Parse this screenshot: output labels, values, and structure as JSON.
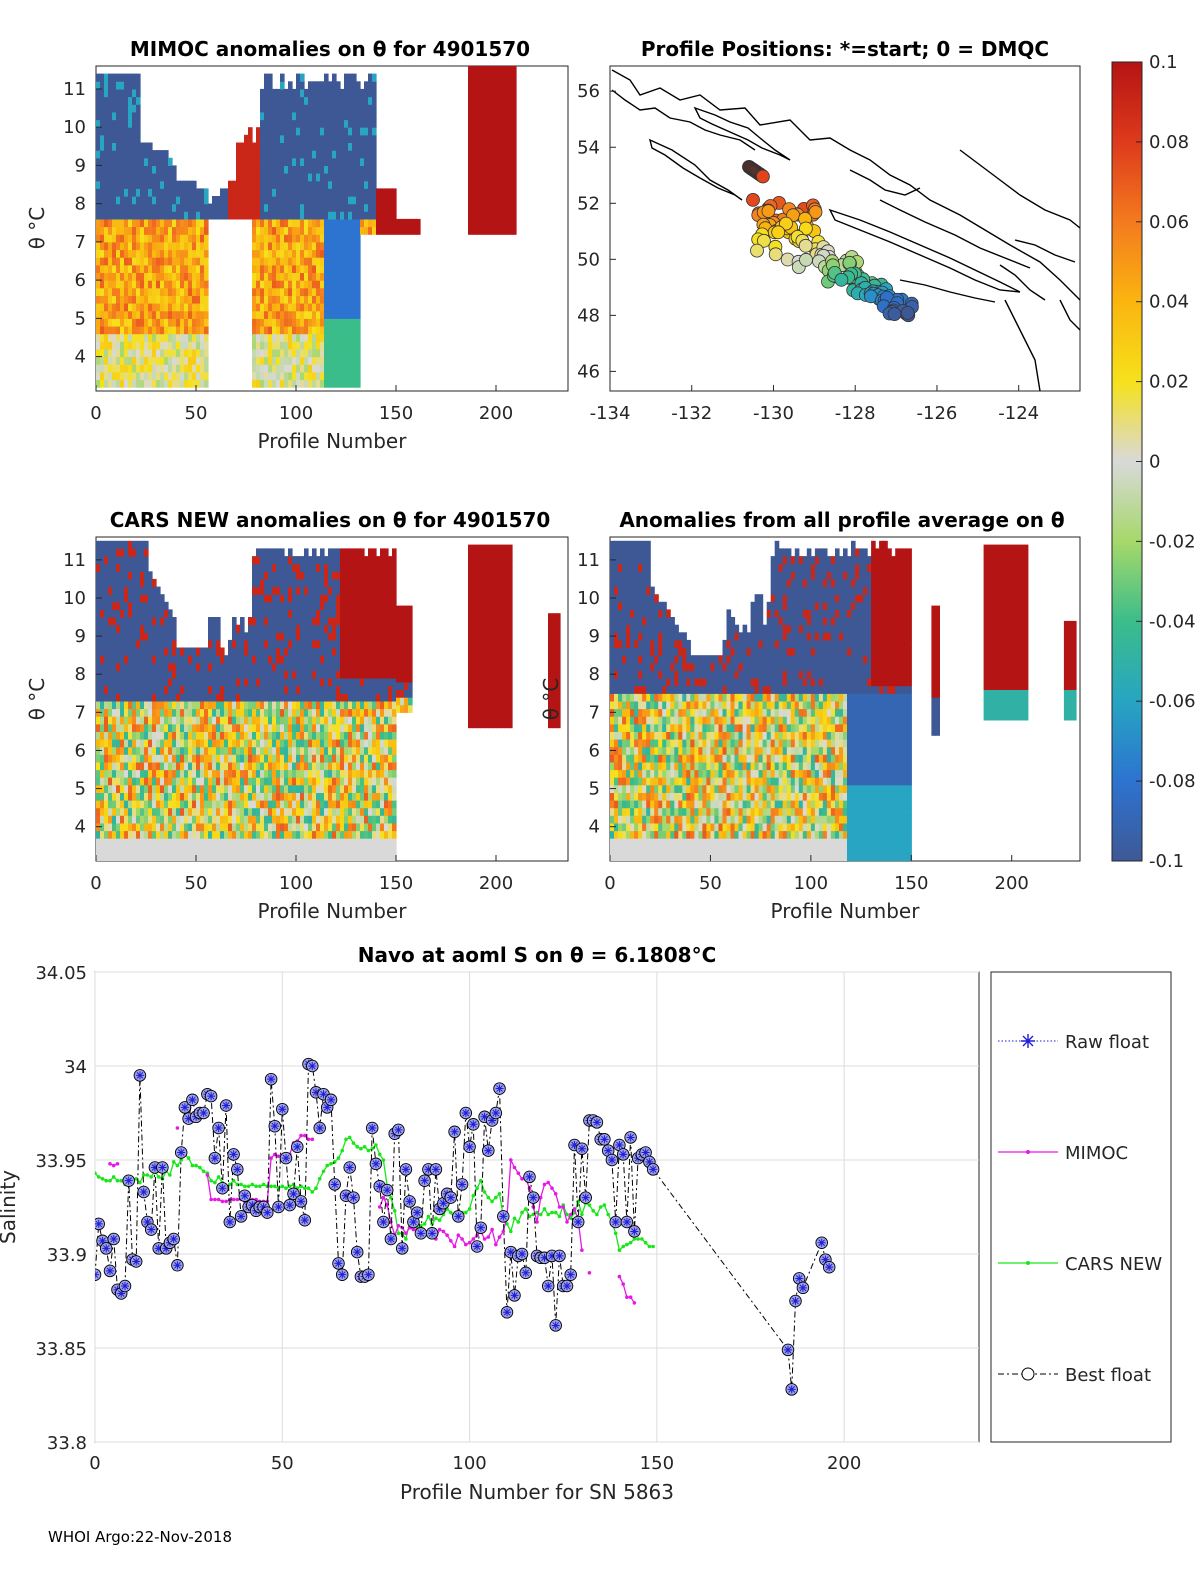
{
  "panels": {
    "mimoc": {
      "title": "MIMOC anomalies on θ  for 4901570",
      "xlabel": "Profile Number",
      "ylabel": "θ °C",
      "xticks": [
        0,
        50,
        100,
        150,
        200
      ],
      "yticks": [
        4,
        5,
        6,
        7,
        8,
        9,
        10,
        11
      ]
    },
    "positions": {
      "title": "Profile Positions: *=start; 0 = DMQC",
      "xticks": [
        -134,
        -132,
        -130,
        -128,
        -126,
        -124
      ],
      "yticks": [
        46,
        48,
        50,
        52,
        54,
        56
      ]
    },
    "cars": {
      "title": "CARS NEW anomalies on θ for 4901570",
      "xlabel": "Profile Number",
      "ylabel": "θ °C",
      "xticks": [
        0,
        50,
        100,
        150,
        200
      ],
      "yticks": [
        4,
        5,
        6,
        7,
        8,
        9,
        10,
        11
      ]
    },
    "average": {
      "title": "Anomalies from all profile average on θ",
      "xlabel": "Profile Number",
      "ylabel": "θ °C",
      "xticks": [
        0,
        50,
        100,
        150,
        200
      ],
      "yticks": [
        4,
        5,
        6,
        7,
        8,
        9,
        10,
        11
      ]
    }
  },
  "colorbar": {
    "ticks": [
      "0.1",
      "0.08",
      "0.06",
      "0.04",
      "0.02",
      "0",
      "-0.02",
      "-0.04",
      "-0.06",
      "-0.08",
      "-0.1"
    ]
  },
  "chart_data": {
    "type": "line",
    "title": "Navo at aoml S on θ = 6.1808",
    "title_unit": "°C",
    "xlabel": "Profile Number for SN 5863",
    "ylabel": "Salinity",
    "xlim": [
      0,
      236
    ],
    "ylim": [
      33.8,
      34.05
    ],
    "xticks": [
      0,
      50,
      100,
      150,
      200
    ],
    "yticks": [
      "33.8",
      "33.85",
      "33.9",
      "33.95",
      "34",
      "34.05"
    ],
    "legend": [
      {
        "name": "Raw float",
        "color": "#1f1fd6"
      },
      {
        "name": "MIMOC",
        "color": "#e619e6"
      },
      {
        "name": "CARS NEW",
        "color": "#19e619"
      },
      {
        "name": "Best float",
        "color": "#000000"
      }
    ],
    "series": [
      {
        "name": "Best float",
        "color": "#000000",
        "x": [
          0,
          1,
          2,
          3,
          4,
          5,
          6,
          7,
          8,
          9,
          10,
          11,
          12,
          13,
          14,
          15,
          16,
          17,
          18,
          19,
          20,
          21,
          22,
          23,
          24,
          25,
          26,
          27,
          28,
          29,
          30,
          31,
          32,
          33,
          34,
          35,
          36,
          37,
          38,
          39,
          40,
          41,
          42,
          43,
          44,
          45,
          46,
          47,
          48,
          49,
          50,
          51,
          52,
          53,
          54,
          55,
          56,
          57,
          58,
          59,
          60,
          61,
          62,
          63,
          64,
          65,
          66,
          67,
          68,
          69,
          70,
          71,
          72,
          73,
          74,
          75,
          76,
          77,
          78,
          79,
          80,
          81,
          82,
          83,
          84,
          85,
          86,
          87,
          88,
          89,
          90,
          91,
          92,
          93,
          94,
          95,
          96,
          97,
          98,
          99,
          100,
          101,
          102,
          103,
          104,
          105,
          106,
          107,
          108,
          109,
          110,
          111,
          112,
          113,
          114,
          115,
          116,
          117,
          118,
          119,
          120,
          121,
          122,
          123,
          124,
          125,
          126,
          127,
          128,
          129,
          130,
          131,
          132,
          133,
          134,
          135,
          136,
          137,
          138,
          139,
          140,
          141,
          142,
          143,
          144,
          145,
          146,
          147,
          148,
          149,
          185,
          186,
          187,
          188,
          189,
          194,
          195,
          196
        ],
        "y": [
          33.889,
          33.916,
          33.907,
          33.903,
          33.891,
          33.908,
          33.881,
          33.879,
          33.883,
          33.939,
          33.897,
          33.896,
          33.995,
          33.933,
          33.917,
          33.913,
          33.946,
          33.903,
          33.946,
          33.903,
          33.906,
          33.908,
          33.894,
          33.954,
          33.978,
          33.972,
          33.982,
          33.973,
          33.975,
          33.975,
          33.985,
          33.984,
          33.951,
          33.967,
          33.935,
          33.979,
          33.917,
          33.953,
          33.945,
          33.92,
          33.931,
          33.925,
          33.926,
          33.923,
          33.925,
          33.925,
          33.922,
          33.993,
          33.968,
          33.925,
          33.977,
          33.951,
          33.926,
          33.932,
          33.957,
          33.928,
          33.918,
          34.001,
          34.0,
          33.986,
          33.967,
          33.985,
          33.978,
          33.982,
          33.937,
          33.895,
          33.889,
          33.931,
          33.946,
          33.93,
          33.901,
          33.888,
          33.888,
          33.889,
          33.967,
          33.948,
          33.936,
          33.917,
          33.934,
          33.908,
          33.964,
          33.966,
          33.903,
          33.945,
          33.928,
          33.917,
          33.922,
          33.911,
          33.939,
          33.945,
          33.911,
          33.945,
          33.924,
          33.927,
          33.932,
          33.93,
          33.965,
          33.92,
          33.937,
          33.975,
          33.957,
          33.969,
          33.904,
          33.914,
          33.973,
          33.955,
          33.971,
          33.975,
          33.988,
          33.92,
          33.869,
          33.901,
          33.878,
          33.899,
          33.9,
          33.89,
          33.941,
          33.93,
          33.899,
          33.898,
          33.898,
          33.883,
          33.899,
          33.862,
          33.899,
          33.883,
          33.883,
          33.889,
          33.958,
          33.917,
          33.956,
          33.93,
          33.971,
          33.971,
          33.97,
          33.961,
          33.961,
          33.955,
          33.95,
          33.917,
          33.958,
          33.953,
          33.917,
          33.962,
          33.912,
          33.951,
          33.953,
          33.954,
          33.949,
          33.945,
          33.849,
          33.828,
          33.875,
          33.887,
          33.882,
          33.906,
          33.897,
          33.893
        ]
      },
      {
        "name": "MIMOC",
        "color": "#e619e6",
        "x": [
          4,
          5,
          6,
          22,
          30,
          31,
          32,
          33,
          34,
          35,
          36,
          37,
          38,
          39,
          40,
          41,
          42,
          43,
          44,
          45,
          46,
          47,
          48,
          49,
          50,
          51,
          52,
          53,
          54,
          55,
          56,
          57,
          58,
          76,
          77,
          78,
          79,
          80,
          81,
          82,
          83,
          84,
          85,
          86,
          87,
          88,
          89,
          90,
          91,
          92,
          93,
          94,
          95,
          96,
          97,
          98,
          99,
          100,
          101,
          102,
          103,
          104,
          105,
          106,
          107,
          108,
          109,
          110,
          111,
          112,
          113,
          114,
          115,
          116,
          117,
          118,
          119,
          120,
          121,
          122,
          123,
          124,
          125,
          126,
          127,
          128,
          129,
          130,
          132,
          140,
          141,
          142,
          143,
          144
        ],
        "y": [
          33.948,
          33.947,
          33.948,
          33.967,
          33.942,
          33.929,
          33.929,
          33.929,
          33.928,
          33.928,
          33.929,
          33.929,
          33.929,
          33.929,
          33.928,
          33.929,
          33.929,
          33.929,
          33.928,
          33.928,
          33.928,
          33.951,
          33.953,
          33.952,
          33.952,
          33.952,
          33.953,
          33.959,
          33.96,
          33.963,
          33.963,
          33.961,
          33.961,
          33.925,
          33.93,
          33.926,
          33.917,
          33.91,
          33.915,
          33.914,
          33.911,
          33.914,
          33.913,
          33.913,
          33.91,
          33.912,
          33.911,
          33.909,
          33.908,
          33.913,
          33.912,
          33.91,
          33.907,
          33.904,
          33.91,
          33.908,
          33.905,
          33.906,
          33.908,
          33.91,
          33.912,
          33.908,
          33.909,
          33.913,
          33.905,
          33.909,
          33.912,
          33.92,
          33.95,
          33.946,
          33.943,
          33.94,
          33.94,
          33.935,
          33.925,
          33.917,
          33.93,
          33.937,
          33.938,
          33.935,
          33.932,
          33.925,
          33.925,
          33.917,
          33.921,
          33.924,
          33.918,
          33.902,
          33.89,
          33.888,
          33.884,
          33.877,
          33.877,
          33.874
        ]
      },
      {
        "name": "CARS NEW",
        "color": "#19e619",
        "x": [
          0,
          1,
          2,
          3,
          4,
          5,
          6,
          7,
          8,
          9,
          10,
          11,
          12,
          13,
          14,
          15,
          16,
          17,
          18,
          19,
          20,
          21,
          22,
          23,
          24,
          25,
          26,
          27,
          28,
          29,
          30,
          31,
          32,
          33,
          34,
          35,
          36,
          37,
          38,
          39,
          40,
          41,
          42,
          43,
          44,
          45,
          46,
          47,
          48,
          49,
          50,
          51,
          52,
          53,
          54,
          55,
          56,
          57,
          58,
          59,
          60,
          61,
          62,
          63,
          64,
          65,
          66,
          67,
          68,
          69,
          70,
          71,
          72,
          73,
          74,
          75,
          76,
          77,
          78,
          79,
          80,
          81,
          82,
          83,
          84,
          85,
          86,
          87,
          88,
          89,
          90,
          91,
          92,
          93,
          94,
          95,
          96,
          97,
          98,
          99,
          100,
          101,
          102,
          103,
          104,
          105,
          106,
          107,
          108,
          109,
          110,
          111,
          112,
          113,
          114,
          115,
          116,
          117,
          118,
          119,
          120,
          121,
          122,
          123,
          124,
          125,
          126,
          127,
          128,
          129,
          130,
          131,
          132,
          133,
          134,
          135,
          136,
          137,
          138,
          139,
          140,
          141,
          142,
          143,
          144,
          145,
          146,
          147,
          148,
          149
        ],
        "y": [
          33.943,
          33.941,
          33.94,
          33.939,
          33.939,
          33.941,
          33.939,
          33.939,
          33.937,
          33.938,
          33.939,
          33.94,
          33.938,
          33.942,
          33.942,
          33.941,
          33.944,
          33.941,
          33.94,
          33.944,
          33.942,
          33.949,
          33.947,
          33.95,
          33.953,
          33.951,
          33.947,
          33.947,
          33.946,
          33.944,
          33.943,
          33.939,
          33.938,
          33.941,
          33.938,
          33.936,
          33.937,
          33.939,
          33.937,
          33.937,
          33.936,
          33.936,
          33.937,
          33.936,
          33.936,
          33.937,
          33.936,
          33.936,
          33.936,
          33.935,
          33.936,
          33.935,
          33.936,
          33.937,
          33.935,
          33.936,
          33.935,
          33.935,
          33.933,
          33.935,
          33.94,
          33.944,
          33.947,
          33.948,
          33.949,
          33.951,
          33.955,
          33.961,
          33.962,
          33.959,
          33.957,
          33.956,
          33.957,
          33.955,
          33.956,
          33.958,
          33.953,
          33.95,
          33.936,
          33.93,
          33.923,
          33.911,
          33.911,
          33.908,
          33.917,
          33.917,
          33.914,
          33.915,
          33.916,
          33.92,
          33.916,
          33.919,
          33.918,
          33.921,
          33.924,
          33.922,
          33.919,
          33.92,
          33.922,
          33.922,
          33.924,
          33.931,
          33.935,
          33.939,
          33.933,
          33.93,
          33.928,
          33.93,
          33.932,
          33.92,
          33.916,
          33.912,
          33.919,
          33.917,
          33.922,
          33.924,
          33.92,
          33.921,
          33.922,
          33.921,
          33.924,
          33.921,
          33.922,
          33.922,
          33.92,
          33.926,
          33.921,
          33.919,
          33.922,
          33.928,
          33.921,
          33.927,
          33.926,
          33.923,
          33.921,
          33.925,
          33.926,
          33.921,
          33.917,
          33.911,
          33.902,
          33.904,
          33.905,
          33.906,
          33.908,
          33.908,
          33.908,
          33.906,
          33.904,
          33.904
        ]
      }
    ]
  },
  "footer": "WHOI Argo:22-Nov-2018"
}
